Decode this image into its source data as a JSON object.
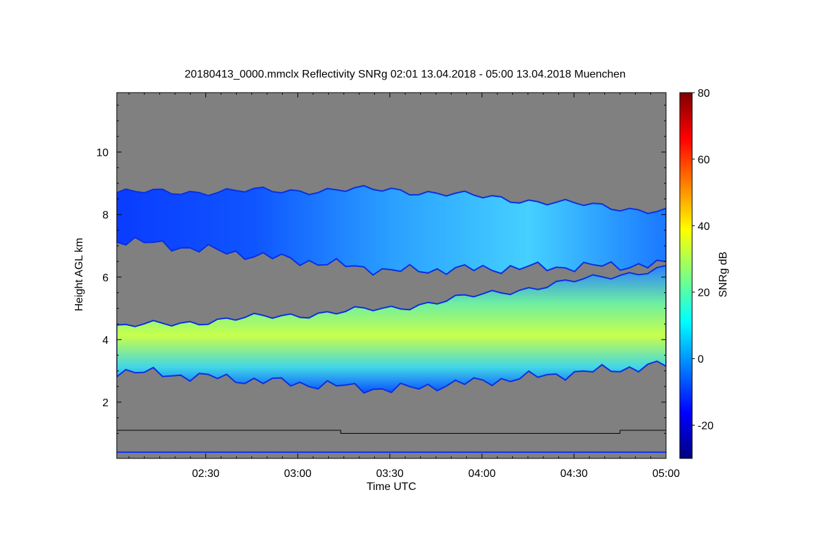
{
  "chart_data": {
    "type": "heatmap",
    "title": "20180413_0000.mmclx Reflectivity SNRg   02:01 13.04.2018 - 05:00 13.04.2018 Muenchen",
    "xlabel": "Time UTC",
    "ylabel": "Height AGL km",
    "colorbar_label": "SNRg dB",
    "x_ticks": [
      "02:30",
      "03:00",
      "03:30",
      "04:00",
      "04:30",
      "05:00"
    ],
    "x_tick_minutes": [
      150,
      180,
      210,
      240,
      270,
      300
    ],
    "x_range_minutes": [
      121,
      300
    ],
    "y_ticks": [
      2,
      4,
      6,
      8,
      10
    ],
    "y_range": [
      0.2,
      11.9
    ],
    "colorbar_ticks": [
      -20,
      0,
      20,
      40,
      60,
      80
    ],
    "colorbar_range": [
      -30,
      80
    ],
    "colors": {
      "no_signal": "#808080",
      "colormap": [
        "#00007f",
        "#0000ff",
        "#007fff",
        "#00ffff",
        "#7fff7f",
        "#ffff00",
        "#ff7f00",
        "#ff0000",
        "#7f0000"
      ]
    },
    "layers": [
      {
        "name": "upper cloud layer",
        "time_minutes": [
          121,
          300
        ],
        "base_km": [
          7.2,
          6.2,
          6.4
        ],
        "top_km": [
          8.7,
          8.8,
          8.1
        ],
        "snr_db_range": [
          -20,
          10
        ]
      },
      {
        "name": "lower cloud layer",
        "time_minutes": [
          121,
          300
        ],
        "base_km": [
          3.0,
          2.4,
          3.2
        ],
        "top_km": [
          4.4,
          5.0,
          6.3
        ],
        "snr_db_range": [
          -10,
          35
        ]
      }
    ],
    "ground_line_km": [
      {
        "time_minutes": [
          121,
          194
        ],
        "height_km": 1.1
      },
      {
        "time_minutes": [
          194,
          285
        ],
        "height_km": 1.0
      },
      {
        "time_minutes": [
          285,
          300
        ],
        "height_km": 1.1
      }
    ]
  }
}
